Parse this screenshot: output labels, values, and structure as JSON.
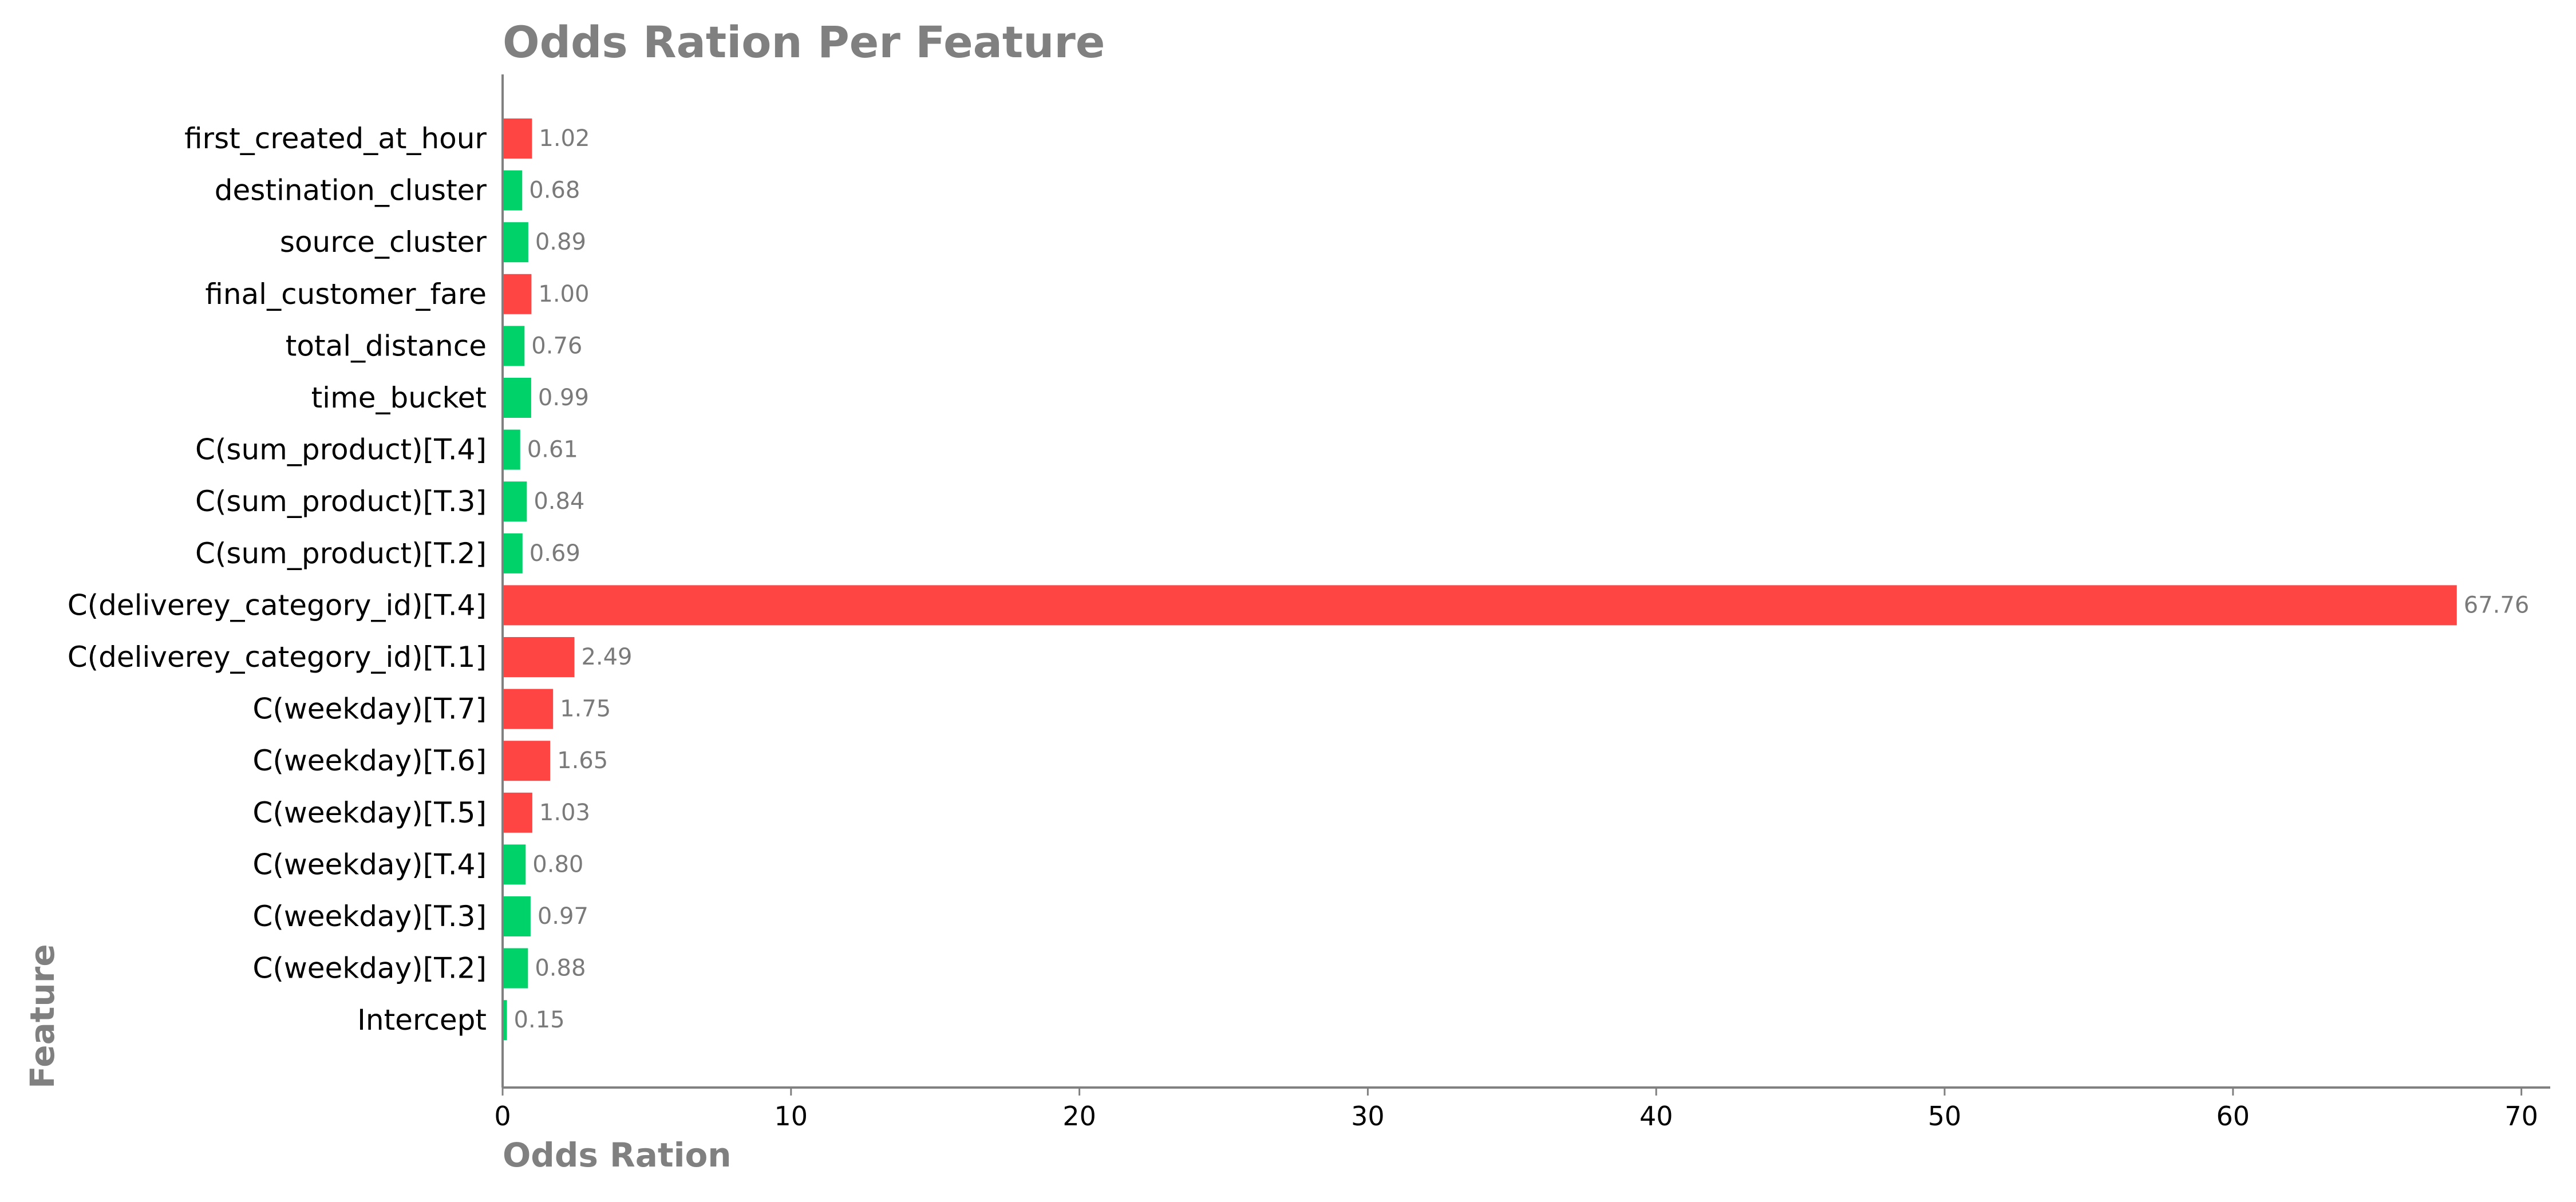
{
  "chart_data": {
    "type": "bar",
    "orientation": "horizontal",
    "title": "Odds Ration Per Feature",
    "xlabel": "Odds Ration",
    "ylabel": "Feature",
    "xlim": [
      0,
      71
    ],
    "xticks": [
      0,
      10,
      20,
      30,
      40,
      50,
      60,
      70
    ],
    "grid": false,
    "colors": {
      "above_one": "#ff4444",
      "below_one": "#00d26a",
      "axis": "#808080",
      "title": "#808080",
      "data_label": "#7a7a7a"
    },
    "categories": [
      "first_created_at_hour",
      "destination_cluster",
      "source_cluster",
      "final_customer_fare",
      "total_distance",
      "time_bucket",
      "C(sum_product)[T.4]",
      "C(sum_product)[T.3]",
      "C(sum_product)[T.2]",
      "C(deliverey_category_id)[T.4]",
      "C(deliverey_category_id)[T.1]",
      "C(weekday)[T.7]",
      "C(weekday)[T.6]",
      "C(weekday)[T.5]",
      "C(weekday)[T.4]",
      "C(weekday)[T.3]",
      "C(weekday)[T.2]",
      "Intercept"
    ],
    "values": [
      1.02,
      0.68,
      0.89,
      1.0,
      0.76,
      0.99,
      0.61,
      0.84,
      0.69,
      67.76,
      2.49,
      1.75,
      1.65,
      1.03,
      0.8,
      0.97,
      0.88,
      0.15
    ],
    "value_labels": [
      "1.02",
      "0.68",
      "0.89",
      "1.00",
      "0.76",
      "0.99",
      "0.61",
      "0.84",
      "0.69",
      "67.76",
      "2.49",
      "1.75",
      "1.65",
      "1.03",
      "0.80",
      "0.97",
      "0.88",
      "0.15"
    ],
    "bar_colors": [
      "above_one",
      "below_one",
      "below_one",
      "above_one",
      "below_one",
      "below_one",
      "below_one",
      "below_one",
      "below_one",
      "above_one",
      "above_one",
      "above_one",
      "above_one",
      "above_one",
      "below_one",
      "below_one",
      "below_one",
      "below_one"
    ]
  }
}
